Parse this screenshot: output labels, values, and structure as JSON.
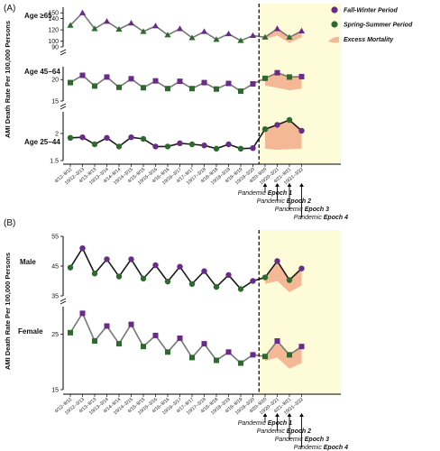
{
  "colors": {
    "fall_winter": "#6a2a8a",
    "spring_summer": "#2d6a2d",
    "line": "#777777",
    "line_male": "#1a1a1a",
    "excess": "#f4b896",
    "pandemic_bg": "#fdfbd8",
    "dashed": "#000000"
  },
  "periods": [
    "4/12–9/12",
    "10/12–3/13",
    "4/13–9/13",
    "10/13–3/14",
    "4/14–9/14",
    "10/14–3/15",
    "4/15–9/15",
    "10/15–3/16",
    "4/16–9/16",
    "10/16–3/17",
    "4/17–9/17",
    "10/17–3/18",
    "4/18–9/18",
    "10/18–3/19",
    "4/19–9/19",
    "10/19–3/20",
    "4/20–9/20",
    "10/20–3/21",
    "4/21–9/21",
    "10/21–3/22"
  ],
  "panelA": {
    "label": "(A)",
    "ylabel": "AMI Death Rate Per 100,000 Persons",
    "legend": {
      "fall_winter": "Fall-Winter Period",
      "spring_summer": "Spring-Summer Period",
      "excess": "Excess Mortality"
    },
    "epochs": [
      {
        "prefix": "Pandemic ",
        "name": "Epoch 1"
      },
      {
        "prefix": "Pandemic ",
        "name": "Epoch 2"
      },
      {
        "prefix": "Pandemic ",
        "name": "Epoch 3"
      },
      {
        "prefix": "Pandemic ",
        "name": "Epoch 4"
      }
    ]
  },
  "panelB": {
    "label": "(B)",
    "ylabel": "AMI Death Rate Per 100,000 Persons",
    "epochs": [
      {
        "prefix": "Pandemic ",
        "name": "Epoch 1"
      },
      {
        "prefix": "Pandemic ",
        "name": "Epoch 2"
      },
      {
        "prefix": "Pandemic ",
        "name": "Epoch 3"
      },
      {
        "prefix": "Pandemic ",
        "name": "Epoch 4"
      }
    ]
  },
  "chart_data": [
    {
      "type": "line",
      "panel": "A",
      "group_label": "Age ≥65",
      "ylim": [
        90,
        160
      ],
      "yticks": [
        90,
        100,
        120,
        140,
        150
      ],
      "x": [
        "4/12–9/12",
        "10/12–3/13",
        "4/13–9/13",
        "10/13–3/14",
        "4/14–9/14",
        "10/14–3/15",
        "4/15–9/15",
        "10/15–3/16",
        "4/16–9/16",
        "10/16–3/17",
        "4/17–9/17",
        "10/17–3/18",
        "4/18–9/18",
        "10/18–3/19",
        "4/19–9/19",
        "10/19–3/20",
        "4/20–9/20",
        "10/20–3/21",
        "4/21–9/21",
        "10/21–3/22"
      ],
      "values": [
        128,
        150,
        122,
        135,
        121,
        132,
        117,
        127,
        111,
        122,
        106,
        117,
        103,
        113,
        101,
        110,
        107,
        122,
        107,
        118
      ],
      "expected": [
        null,
        null,
        null,
        null,
        null,
        null,
        null,
        null,
        null,
        null,
        null,
        null,
        null,
        null,
        null,
        null,
        104,
        110,
        97,
        107
      ],
      "marker_shape": "triangle"
    },
    {
      "type": "line",
      "panel": "A",
      "group_label": "Age 45−64",
      "ylim": [
        15,
        23
      ],
      "yticks": [
        15,
        20
      ],
      "x": [
        "4/12–9/12",
        "10/12–3/13",
        "4/13–9/13",
        "10/13–3/14",
        "4/14–9/14",
        "10/14–3/15",
        "4/15–9/15",
        "10/15–3/16",
        "4/16–9/16",
        "10/16–3/17",
        "4/17–9/17",
        "10/17–3/18",
        "4/18–9/18",
        "10/18–3/19",
        "4/19–9/19",
        "10/19–3/20",
        "4/20–9/20",
        "10/20–3/21",
        "4/21–9/21",
        "10/21–3/22"
      ],
      "values": [
        19.3,
        21.0,
        18.5,
        20.6,
        18.2,
        20.2,
        18.1,
        19.7,
        17.9,
        19.6,
        17.9,
        19.3,
        17.8,
        19.1,
        17.3,
        19.0,
        20.3,
        21.6,
        20.6,
        20.7
      ],
      "expected": [
        null,
        null,
        null,
        null,
        null,
        null,
        null,
        null,
        null,
        null,
        null,
        null,
        null,
        null,
        null,
        null,
        18.6,
        18.1,
        17.5,
        17.9
      ],
      "marker_shape": "square"
    },
    {
      "type": "line",
      "panel": "A",
      "group_label": "Age 25−44",
      "ylim": [
        1.5,
        2.4
      ],
      "yticks": [
        1.5,
        2.0
      ],
      "x": [
        "4/12–9/12",
        "10/12–3/13",
        "4/13–9/13",
        "10/13–3/14",
        "4/14–9/14",
        "10/14–3/15",
        "4/15–9/15",
        "10/15–3/16",
        "4/16–9/16",
        "10/16–3/17",
        "4/17–9/17",
        "10/17–3/18",
        "4/18–9/18",
        "10/18–3/19",
        "4/19–9/19",
        "10/19–3/20",
        "4/20–9/20",
        "10/20–3/21",
        "4/21–9/21",
        "10/21–3/22"
      ],
      "values": [
        1.92,
        1.93,
        1.8,
        1.92,
        1.76,
        1.93,
        1.9,
        1.76,
        1.76,
        1.82,
        1.8,
        1.78,
        1.72,
        1.8,
        1.72,
        1.73,
        2.08,
        2.16,
        2.25,
        2.05
      ],
      "expected": [
        null,
        null,
        null,
        null,
        null,
        null,
        null,
        null,
        null,
        null,
        null,
        null,
        null,
        null,
        null,
        null,
        1.72,
        1.7,
        1.71,
        1.72
      ],
      "marker_shape": "circle"
    },
    {
      "type": "line",
      "panel": "B",
      "group_label": "Male",
      "ylim": [
        35,
        55
      ],
      "yticks": [
        35,
        45,
        55
      ],
      "x": [
        "4/12–9/12",
        "10/12–3/13",
        "4/13–9/13",
        "10/13–3/14",
        "4/14–9/14",
        "10/14–3/15",
        "4/15–9/15",
        "10/15–3/16",
        "4/16–9/16",
        "10/16–3/17",
        "4/17–9/17",
        "10/17–3/18",
        "4/18–9/18",
        "10/18–3/19",
        "4/19–9/19",
        "10/19–3/20",
        "4/20–9/20",
        "10/20–3/21",
        "4/21–9/21",
        "10/21–3/22"
      ],
      "values": [
        44.5,
        51.0,
        42.5,
        47.3,
        41.5,
        47.3,
        40.8,
        45.3,
        39.8,
        44.8,
        39.0,
        43.3,
        38.0,
        42.0,
        37.3,
        40.0,
        41.2,
        46.7,
        40.3,
        44.2
      ],
      "expected": [
        null,
        null,
        null,
        null,
        null,
        null,
        null,
        null,
        null,
        null,
        null,
        null,
        null,
        null,
        null,
        null,
        39.0,
        40.0,
        36.2,
        38.5
      ],
      "marker_shape": "circle"
    },
    {
      "type": "line",
      "panel": "B",
      "group_label": "Female",
      "ylim": [
        15,
        30
      ],
      "yticks": [
        15,
        25
      ],
      "x": [
        "4/12–9/12",
        "10/12–3/13",
        "4/13–9/13",
        "10/13–3/14",
        "4/14–9/14",
        "10/14–3/15",
        "4/15–9/15",
        "10/15–3/16",
        "4/16–9/16",
        "10/16–3/17",
        "4/17–9/17",
        "10/17–3/18",
        "4/18–9/18",
        "10/18–3/19",
        "4/19–9/19",
        "10/19–3/20",
        "4/20–9/20",
        "10/20–3/21",
        "4/21–9/21",
        "10/21–3/22"
      ],
      "values": [
        25.3,
        28.8,
        23.8,
        26.5,
        23.3,
        26.8,
        22.8,
        24.8,
        21.8,
        24.3,
        20.8,
        23.3,
        20.3,
        21.8,
        19.8,
        21.3,
        21.0,
        23.8,
        21.3,
        22.8
      ],
      "expected": [
        null,
        null,
        null,
        null,
        null,
        null,
        null,
        null,
        null,
        null,
        null,
        null,
        null,
        null,
        null,
        null,
        20.2,
        20.8,
        18.8,
        19.8
      ],
      "marker_shape": "square"
    }
  ]
}
